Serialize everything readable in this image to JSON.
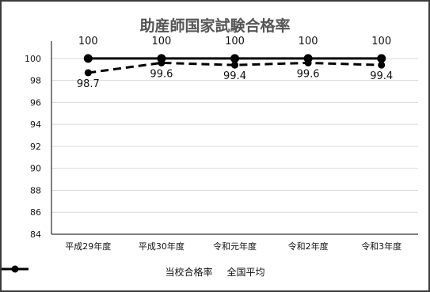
{
  "chart_data": {
    "type": "line",
    "title": "助産師国家試験合格率",
    "categories": [
      "平成29年度",
      "平成30年度",
      "令和元年度",
      "令和2年度",
      "令和3年度"
    ],
    "ylim": [
      84,
      101
    ],
    "yticks": [
      84,
      86,
      88,
      90,
      92,
      94,
      96,
      98,
      100
    ],
    "grid": true,
    "legend_position": "bottom",
    "series": [
      {
        "name": "当校合格率",
        "values": [
          100,
          100,
          100,
          100,
          100
        ],
        "labels": [
          "100",
          "100",
          "100",
          "100",
          "100"
        ],
        "style": "solid",
        "color": "#000000"
      },
      {
        "name": "全国平均",
        "values": [
          98.7,
          99.6,
          99.4,
          99.6,
          99.4
        ],
        "labels": [
          "98.7",
          "99.6",
          "99.4",
          "99.6",
          "99.4"
        ],
        "style": "dashed",
        "color": "#000000"
      }
    ]
  }
}
